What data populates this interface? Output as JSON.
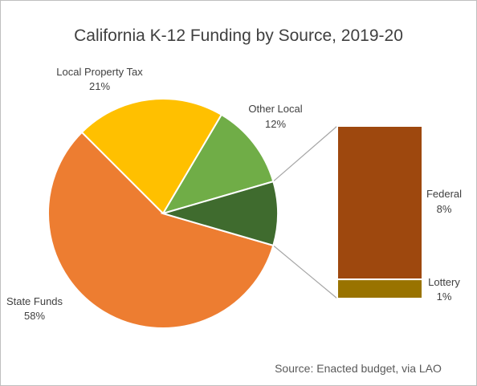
{
  "chart_data": {
    "type": "pie",
    "subtype": "bar-of-pie",
    "title": "California K-12 Funding by Source, 2019-20",
    "slices": [
      {
        "label": "State Funds",
        "value": 58,
        "display": "58%",
        "color": "#ed7d31"
      },
      {
        "label": "Local Property Tax",
        "value": 21,
        "display": "21%",
        "color": "#ffc000"
      },
      {
        "label": "Other Local",
        "value": 12,
        "display": "12%",
        "color": "#70ad47"
      },
      {
        "label": "Other",
        "value": 9,
        "display": "",
        "color": "#3f6b2e",
        "label_shown": false
      }
    ],
    "bar_breakdown_of": "Other",
    "bar_segments": [
      {
        "label": "Federal",
        "value": 8,
        "display": "8%",
        "color": "#9e480e"
      },
      {
        "label": "Lottery",
        "value": 1,
        "display": "1%",
        "color": "#997300"
      }
    ],
    "legend": "none",
    "source_note": "Source: Enacted budget, via LAO"
  }
}
